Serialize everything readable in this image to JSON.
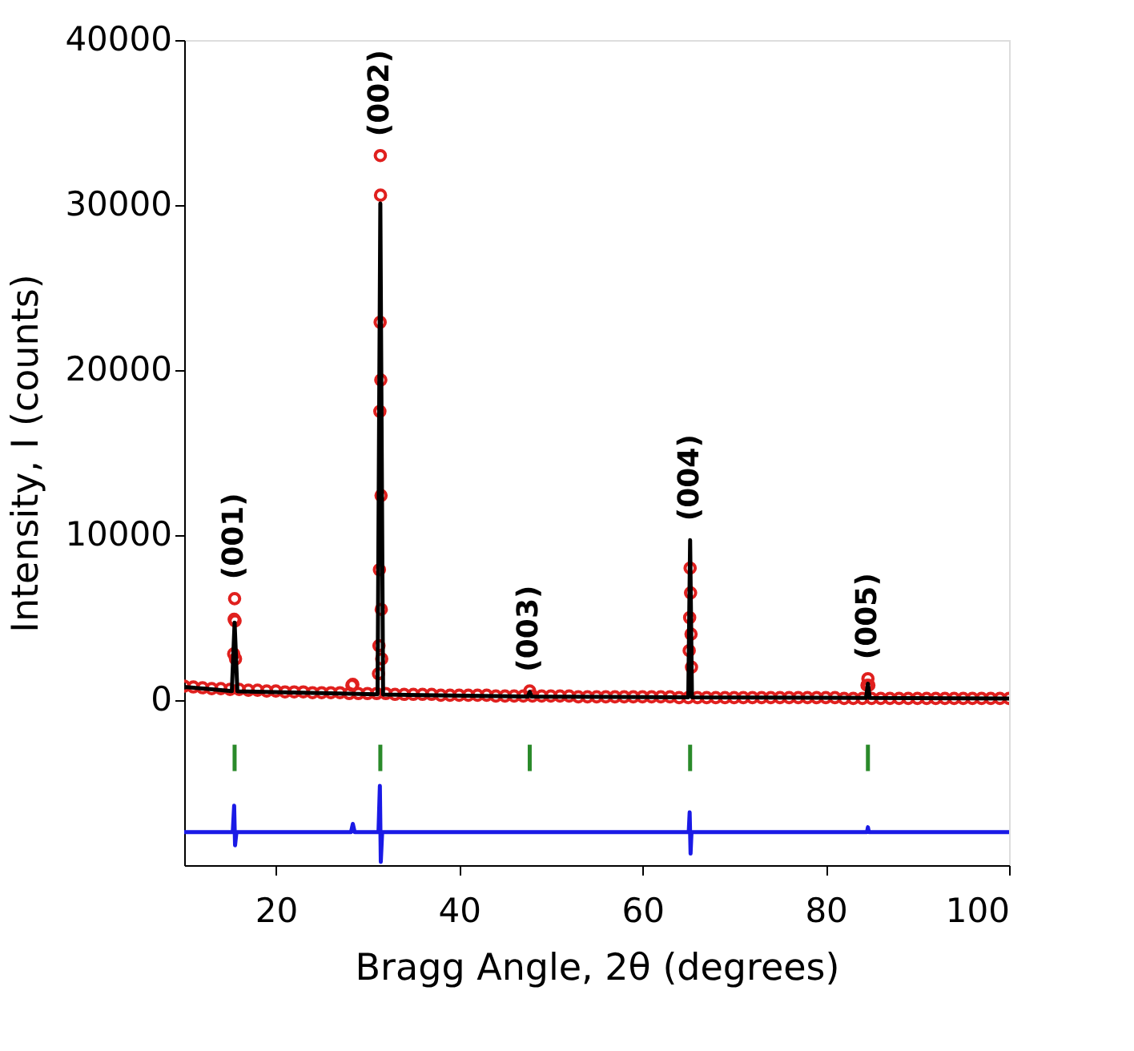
{
  "chart_data": {
    "type": "scatter",
    "xlabel": "Bragg Angle, 2θ (degrees)",
    "ylabel": "Intensity, I (counts)",
    "xlim": [
      10,
      100
    ],
    "xticks": [
      20,
      40,
      60,
      80,
      100
    ],
    "ylim": [
      -10000,
      40000
    ],
    "yticks": [
      0,
      10000,
      20000,
      30000,
      40000
    ],
    "grid": false,
    "series": [
      {
        "marker": "circle",
        "color": "#e0201e",
        "x": [
          10,
          11,
          12,
          13,
          14,
          15,
          16,
          17,
          18,
          19,
          20,
          21,
          22,
          23,
          24,
          25,
          26,
          27,
          28,
          29,
          30,
          31,
          32,
          33,
          34,
          35,
          36,
          37,
          38,
          39,
          40,
          41,
          42,
          43,
          44,
          45,
          46,
          47,
          48,
          49,
          50,
          51,
          52,
          53,
          54,
          55,
          56,
          57,
          58,
          59,
          60,
          61,
          62,
          63,
          64,
          65,
          66,
          67,
          68,
          69,
          70,
          71,
          72,
          73,
          74,
          75,
          76,
          77,
          78,
          79,
          80,
          81,
          82,
          83,
          84,
          85,
          86,
          87,
          88,
          89,
          90,
          91,
          92,
          93,
          94,
          95,
          96,
          97,
          98,
          99,
          100,
          15.4,
          15.45,
          15.5,
          15.55,
          15.6,
          28.3,
          28.4,
          31.2,
          31.25,
          31.3,
          31.35,
          31.38,
          31.4,
          31.42,
          31.45,
          31.48,
          31.5,
          31.55,
          47.7,
          65.1,
          65.15,
          65.2,
          65.25,
          65.3,
          65.35,
          84.5,
          84.6,
          84.7
        ],
        "values": [
          850,
          800,
          750,
          700,
          700,
          650,
          650,
          600,
          600,
          550,
          550,
          500,
          500,
          500,
          450,
          450,
          450,
          450,
          400,
          400,
          400,
          400,
          400,
          350,
          350,
          350,
          350,
          350,
          300,
          300,
          300,
          300,
          300,
          300,
          250,
          250,
          250,
          250,
          250,
          250,
          250,
          250,
          250,
          200,
          200,
          200,
          200,
          200,
          200,
          200,
          200,
          200,
          200,
          200,
          150,
          150,
          150,
          150,
          150,
          150,
          150,
          150,
          150,
          150,
          150,
          150,
          150,
          150,
          150,
          150,
          150,
          150,
          100,
          100,
          100,
          100,
          100,
          100,
          100,
          100,
          100,
          100,
          100,
          100,
          100,
          100,
          100,
          100,
          100,
          100,
          100,
          2800,
          4900,
          6150,
          4800,
          2500,
          900,
          950,
          1600,
          3300,
          7900,
          17500,
          22900,
          33000,
          30600,
          19400,
          12400,
          5500,
          2500,
          550,
          3000,
          5000,
          8000,
          6500,
          4000,
          2000,
          900,
          1300,
          900
        ]
      },
      {
        "type": "line",
        "marker": "none",
        "color": "#000000",
        "x": [
          10,
          15.2,
          15.5,
          15.8,
          31.1,
          31.4,
          31.7,
          47.5,
          47.7,
          47.9,
          65.0,
          65.2,
          65.4,
          84.4,
          84.6,
          84.8,
          100
        ],
        "values": [
          800,
          550,
          4700,
          540,
          350,
          30100,
          340,
          220,
          500,
          220,
          170,
          9700,
          170,
          130,
          1000,
          130,
          100
        ]
      },
      {
        "type": "line",
        "marker": "none",
        "color": "#1a1ae6",
        "x": [
          10,
          15.3,
          15.45,
          15.55,
          15.7,
          28.2,
          28.4,
          28.6,
          31.2,
          31.35,
          31.45,
          31.6,
          65.05,
          65.15,
          65.25,
          65.35,
          84.5,
          84.6,
          84.7,
          100
        ],
        "values": [
          -8000,
          -8000,
          -6400,
          -8800,
          -8000,
          -8000,
          -7500,
          -8000,
          -8000,
          -5200,
          -9800,
          -8000,
          -8000,
          -6800,
          -9300,
          -8000,
          -8000,
          -7700,
          -8000,
          -8000
        ]
      },
      {
        "type": "bar",
        "color": "#2a8a2a",
        "x": [
          15.5,
          31.4,
          47.7,
          65.2,
          84.6
        ],
        "base": [
          -4300,
          -4300,
          -4300,
          -4300,
          -4300
        ],
        "values": [
          1600,
          1600,
          1600,
          1600,
          1600
        ]
      }
    ],
    "annotations": [
      {
        "text": "(001)",
        "x": 15.5,
        "y": 6150
      },
      {
        "text": "(002)",
        "x": 31.4,
        "y": 33000
      },
      {
        "text": "(003)",
        "x": 47.7,
        "y": 550
      },
      {
        "text": "(004)",
        "x": 65.2,
        "y": 9700
      },
      {
        "text": "(005)",
        "x": 84.6,
        "y": 1300
      }
    ]
  }
}
